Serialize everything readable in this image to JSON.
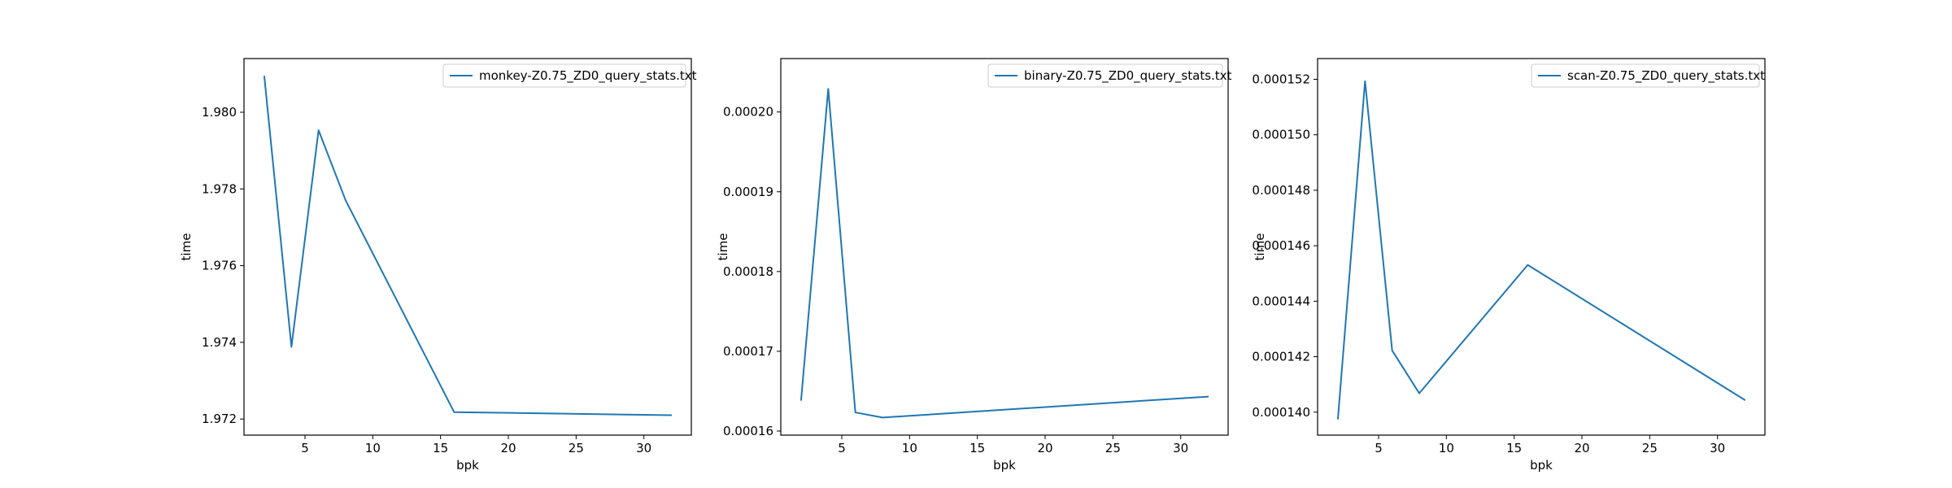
{
  "style": {
    "line_color": "#1f77b4",
    "frame_color": "#000000",
    "legend_border": "#cccccc"
  },
  "chart_data": [
    {
      "type": "line",
      "xlabel": "bpk",
      "ylabel": "time",
      "legend_location": "upper right",
      "grid": false,
      "xlim": [
        0.5,
        33.5
      ],
      "ylim": [
        1.97158,
        1.9814
      ],
      "x_ticks": [
        5,
        10,
        15,
        20,
        25,
        30
      ],
      "x_tick_labels": [
        "5",
        "10",
        "15",
        "20",
        "25",
        "30"
      ],
      "y_ticks": [
        1.972,
        1.974,
        1.976,
        1.978,
        1.98
      ],
      "y_tick_labels": [
        "1.972",
        "1.974",
        "1.976",
        "1.978",
        "1.980"
      ],
      "series": [
        {
          "name": "monkey-Z0.75_ZD0_query_stats.txt",
          "x": [
            2,
            4,
            6,
            8,
            16,
            32
          ],
          "y": [
            1.98093,
            1.97388,
            1.97953,
            1.9777,
            1.97218,
            1.9721
          ]
        }
      ]
    },
    {
      "type": "line",
      "xlabel": "bpk",
      "ylabel": "time",
      "legend_location": "upper right",
      "grid": false,
      "xlim": [
        0.5,
        33.5
      ],
      "ylim": [
        0.000159488,
        0.0002067
      ],
      "x_ticks": [
        5,
        10,
        15,
        20,
        25,
        30
      ],
      "x_tick_labels": [
        "5",
        "10",
        "15",
        "20",
        "25",
        "30"
      ],
      "y_ticks": [
        0.00016,
        0.00017,
        0.00018,
        0.00019,
        0.0002
      ],
      "y_tick_labels": [
        "0.00016",
        "0.00017",
        "0.00018",
        "0.00019",
        "0.00020"
      ],
      "series": [
        {
          "name": "binary-Z0.75_ZD0_query_stats.txt",
          "x": [
            2,
            4,
            6,
            8,
            32
          ],
          "y": [
            0.000163919,
            0.0002029,
            0.000162336,
            0.000161693,
            0.000164318
          ]
        }
      ]
    },
    {
      "type": "line",
      "xlabel": "bpk",
      "ylabel": "time",
      "legend_location": "upper right",
      "grid": false,
      "xlim": [
        0.5,
        33.5
      ],
      "ylim": [
        0.000139172,
        0.000152748
      ],
      "x_ticks": [
        5,
        10,
        15,
        20,
        25,
        30
      ],
      "x_tick_labels": [
        "5",
        "10",
        "15",
        "20",
        "25",
        "30"
      ],
      "y_ticks": [
        0.00014,
        0.000142,
        0.000144,
        0.000146,
        0.000148,
        0.00015,
        0.000152
      ],
      "y_tick_labels": [
        "0.000140",
        "0.000142",
        "0.000144",
        "0.000146",
        "0.000148",
        "0.000150",
        "0.000152"
      ],
      "series": [
        {
          "name": "scan-Z0.75_ZD0_query_stats.txt",
          "x": [
            2,
            4,
            6,
            8,
            16,
            32
          ],
          "y": [
            0.000139769,
            0.000151932,
            0.000142223,
            0.000140681,
            0.000145308,
            0.000140445
          ]
        }
      ]
    }
  ]
}
